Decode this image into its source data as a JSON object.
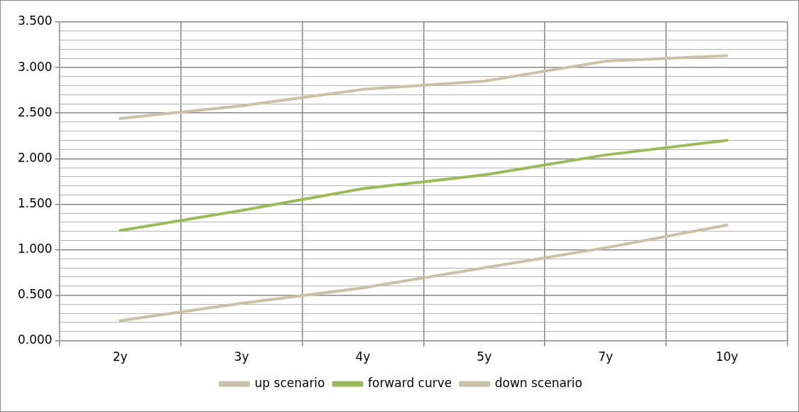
{
  "chart_data": {
    "type": "line",
    "categories": [
      "2y",
      "3y",
      "4y",
      "5y",
      "7y",
      "10y"
    ],
    "series": [
      {
        "name": "up scenario",
        "color": "#c9c2a6",
        "values": [
          2.44,
          2.58,
          2.76,
          2.85,
          3.07,
          3.13
        ]
      },
      {
        "name": "forward curve",
        "color": "#9bbb59",
        "values": [
          1.21,
          1.43,
          1.67,
          1.82,
          2.04,
          2.2
        ]
      },
      {
        "name": "down scenario",
        "color": "#c9c2a6",
        "values": [
          0.22,
          0.41,
          0.58,
          0.8,
          1.02,
          1.27
        ]
      }
    ],
    "ylim": [
      0,
      3.5
    ],
    "yticks": [
      {
        "value": 0,
        "label": "0.000"
      },
      {
        "value": 0.1,
        "label": null
      },
      {
        "value": 0.2,
        "label": null
      },
      {
        "value": 0.3,
        "label": null
      },
      {
        "value": 0.4,
        "label": null
      },
      {
        "value": 0.5,
        "label": "0.500"
      },
      {
        "value": 0.6,
        "label": null
      },
      {
        "value": 0.7,
        "label": null
      },
      {
        "value": 0.8,
        "label": null
      },
      {
        "value": 0.9,
        "label": null
      },
      {
        "value": 1,
        "label": "1.000"
      },
      {
        "value": 1.1,
        "label": null
      },
      {
        "value": 1.2,
        "label": null
      },
      {
        "value": 1.3,
        "label": null
      },
      {
        "value": 1.4,
        "label": null
      },
      {
        "value": 1.5,
        "label": "1.500"
      },
      {
        "value": 1.6,
        "label": null
      },
      {
        "value": 1.7,
        "label": null
      },
      {
        "value": 1.8,
        "label": null
      },
      {
        "value": 1.9,
        "label": null
      },
      {
        "value": 2,
        "label": "2.000"
      },
      {
        "value": 2.1,
        "label": null
      },
      {
        "value": 2.2,
        "label": null
      },
      {
        "value": 2.3,
        "label": null
      },
      {
        "value": 2.4,
        "label": null
      },
      {
        "value": 2.5,
        "label": "2.500"
      },
      {
        "value": 2.6,
        "label": null
      },
      {
        "value": 2.7,
        "label": null
      },
      {
        "value": 2.8,
        "label": null
      },
      {
        "value": 2.9,
        "label": null
      },
      {
        "value": 3,
        "label": "3.000"
      },
      {
        "value": 3.1,
        "label": null
      },
      {
        "value": 3.2,
        "label": null
      },
      {
        "value": 3.3,
        "label": null
      },
      {
        "value": 3.4,
        "label": null
      },
      {
        "value": 3.5,
        "label": "3.500"
      }
    ],
    "grid": true,
    "legend": "bottom",
    "marker": "none",
    "line_style": "solid"
  }
}
